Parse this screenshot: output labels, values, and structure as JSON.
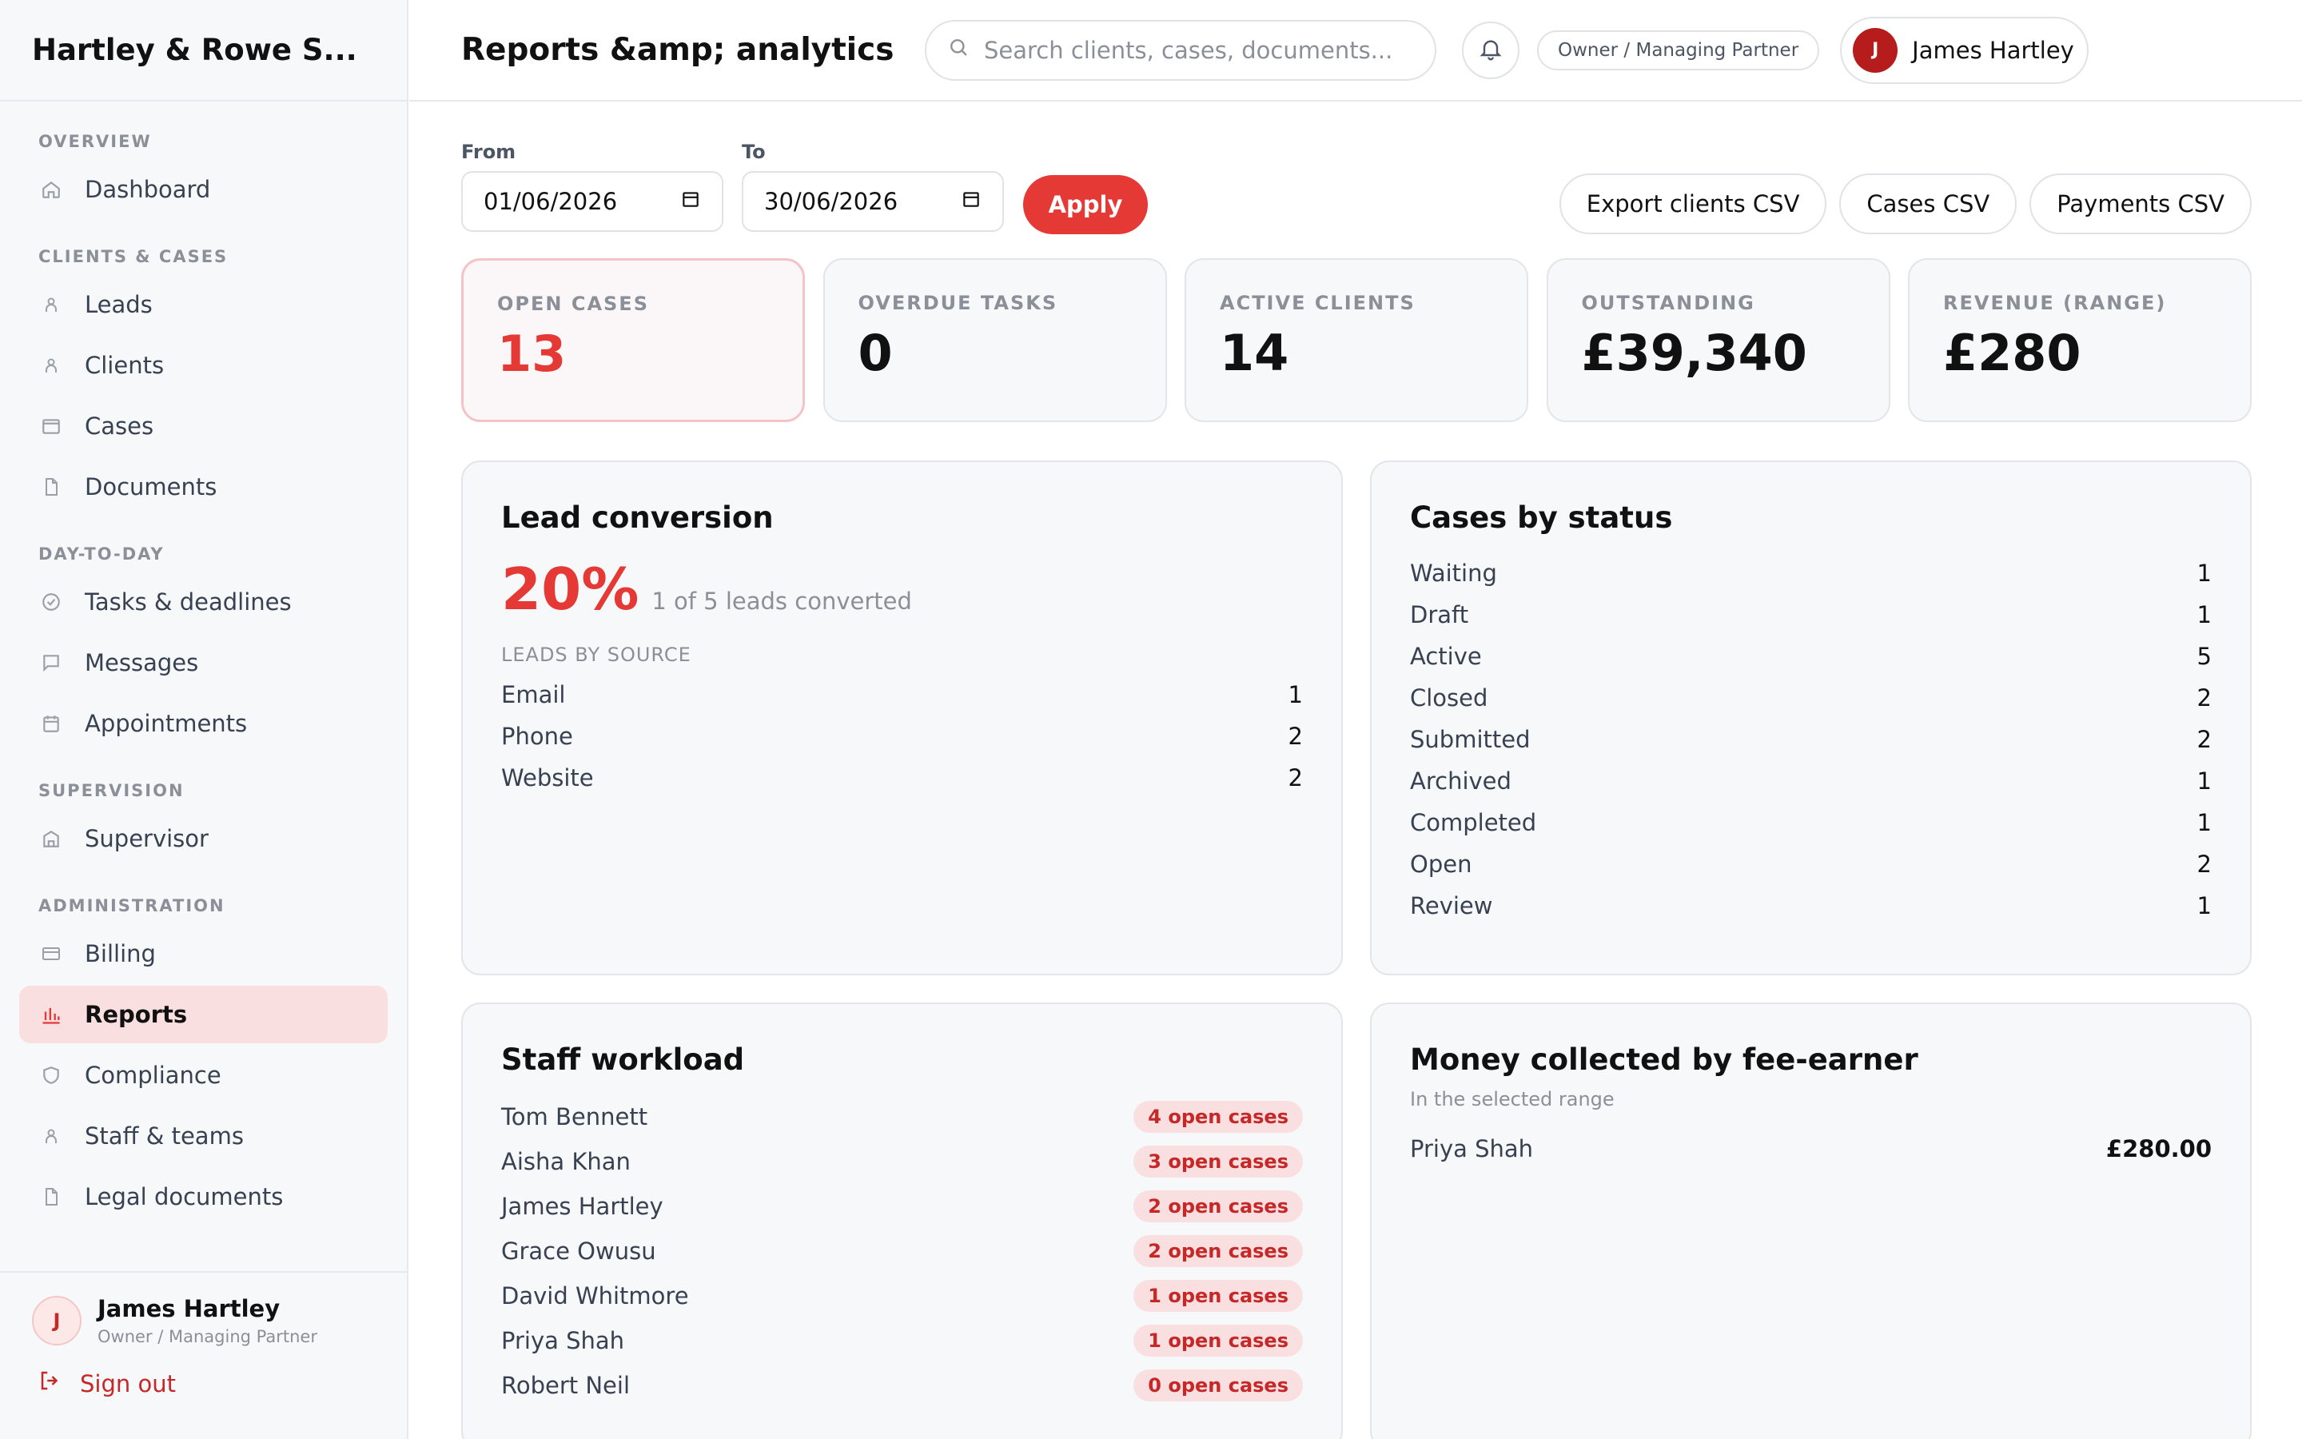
{
  "brand": "Hartley & Rowe S...",
  "header": {
    "title": "Reports &amp; analytics",
    "search_placeholder": "Search clients, cases, documents...",
    "role": "Owner / Managing Partner",
    "user_initial": "J",
    "user_name": "James Hartley"
  },
  "sidebar": {
    "sections": [
      {
        "title": "OVERVIEW",
        "items": [
          {
            "label": "Dashboard",
            "icon": "home-icon"
          }
        ]
      },
      {
        "title": "CLIENTS & CASES",
        "items": [
          {
            "label": "Leads",
            "icon": "person-icon"
          },
          {
            "label": "Clients",
            "icon": "person-icon"
          },
          {
            "label": "Cases",
            "icon": "folder-icon"
          },
          {
            "label": "Documents",
            "icon": "document-icon"
          }
        ]
      },
      {
        "title": "DAY-TO-DAY",
        "items": [
          {
            "label": "Tasks & deadlines",
            "icon": "check-circle-icon"
          },
          {
            "label": "Messages",
            "icon": "chat-icon"
          },
          {
            "label": "Appointments",
            "icon": "calendar-icon"
          }
        ]
      },
      {
        "title": "SUPERVISION",
        "items": [
          {
            "label": "Supervisor",
            "icon": "building-icon"
          }
        ]
      },
      {
        "title": "ADMINISTRATION",
        "items": [
          {
            "label": "Billing",
            "icon": "card-icon"
          },
          {
            "label": "Reports",
            "icon": "bar-chart-icon",
            "active": true
          },
          {
            "label": "Compliance",
            "icon": "shield-icon"
          },
          {
            "label": "Staff & teams",
            "icon": "person-icon"
          },
          {
            "label": "Legal documents",
            "icon": "document-icon"
          }
        ]
      }
    ],
    "footer": {
      "initial": "J",
      "name": "James Hartley",
      "role": "Owner / Managing Partner",
      "signout": "Sign out"
    }
  },
  "filters": {
    "from_label": "From",
    "from_value": "01/06/2026",
    "to_label": "To",
    "to_value": "30/06/2026",
    "apply": "Apply",
    "exports": [
      "Export clients CSV",
      "Cases CSV",
      "Payments CSV"
    ]
  },
  "kpis": [
    {
      "label": "OPEN CASES",
      "value": "13",
      "highlight": true
    },
    {
      "label": "OVERDUE TASKS",
      "value": "0"
    },
    {
      "label": "ACTIVE CLIENTS",
      "value": "14"
    },
    {
      "label": "OUTSTANDING",
      "value": "£39,340"
    },
    {
      "label": "REVENUE (RANGE)",
      "value": "£280"
    }
  ],
  "lead_conversion": {
    "title": "Lead conversion",
    "percent": "20%",
    "caption": "1 of 5 leads converted",
    "source_heading": "LEADS BY SOURCE",
    "sources": [
      {
        "name": "Email",
        "count": "1"
      },
      {
        "name": "Phone",
        "count": "2"
      },
      {
        "name": "Website",
        "count": "2"
      }
    ]
  },
  "cases_by_status": {
    "title": "Cases by status",
    "rows": [
      {
        "name": "Waiting",
        "count": "1"
      },
      {
        "name": "Draft",
        "count": "1"
      },
      {
        "name": "Active",
        "count": "5"
      },
      {
        "name": "Closed",
        "count": "2"
      },
      {
        "name": "Submitted",
        "count": "2"
      },
      {
        "name": "Archived",
        "count": "1"
      },
      {
        "name": "Completed",
        "count": "1"
      },
      {
        "name": "Open",
        "count": "2"
      },
      {
        "name": "Review",
        "count": "1"
      }
    ]
  },
  "staff_workload": {
    "title": "Staff workload",
    "rows": [
      {
        "name": "Tom Bennett",
        "badge": "4 open cases"
      },
      {
        "name": "Aisha Khan",
        "badge": "3 open cases"
      },
      {
        "name": "James Hartley",
        "badge": "2 open cases"
      },
      {
        "name": "Grace Owusu",
        "badge": "2 open cases"
      },
      {
        "name": "David Whitmore",
        "badge": "1 open cases"
      },
      {
        "name": "Priya Shah",
        "badge": "1 open cases"
      },
      {
        "name": "Robert Neil",
        "badge": "0 open cases"
      }
    ]
  },
  "money_collected": {
    "title": "Money collected by fee-earner",
    "subtitle": "In the selected range",
    "rows": [
      {
        "name": "Priya Shah",
        "amount": "£280.00"
      }
    ]
  },
  "colors": {
    "accent": "#e53935",
    "accent_soft": "#f9dfe0",
    "avatar": "#b71c1c"
  }
}
